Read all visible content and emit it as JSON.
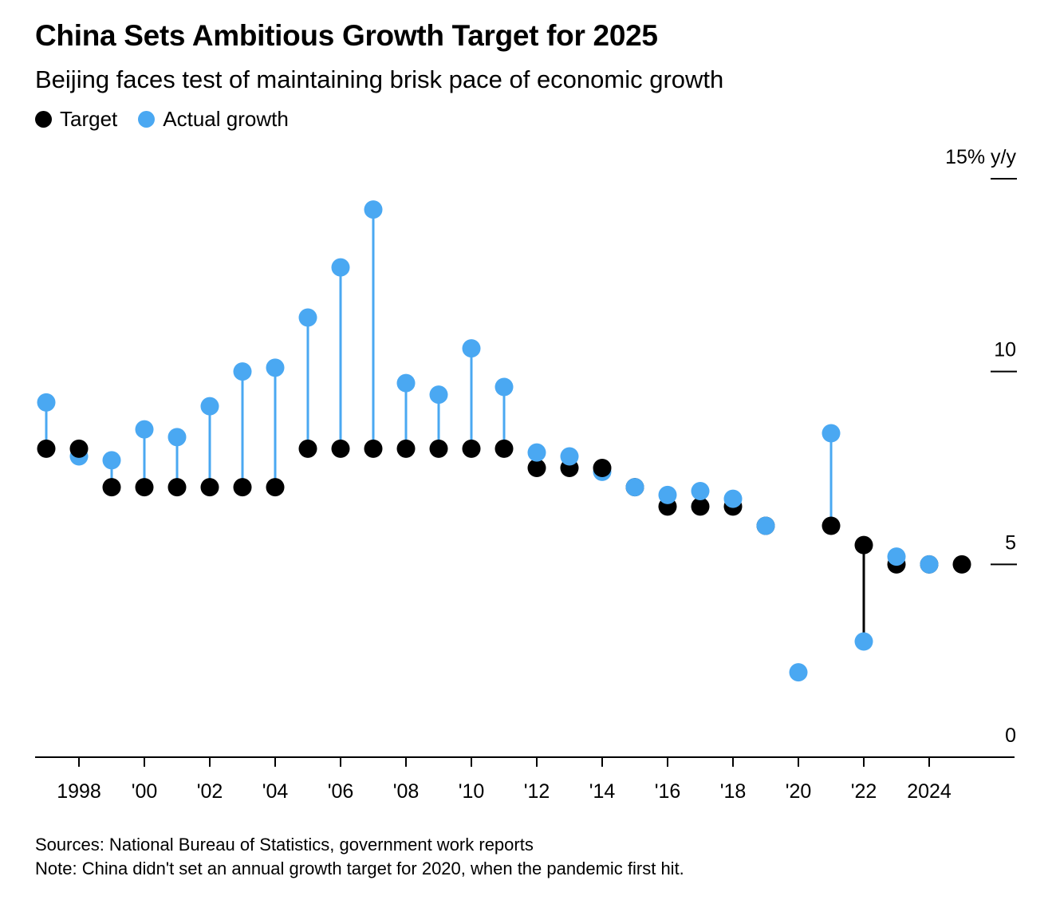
{
  "title": "China Sets Ambitious Growth Target for 2025",
  "subtitle": "Beijing faces test of maintaining brisk pace of economic growth",
  "legend": {
    "target_label": "Target",
    "actual_label": "Actual growth"
  },
  "colors": {
    "target": "#000000",
    "actual": "#4aa8f2",
    "axis": "#000000"
  },
  "footer": {
    "sources": "Sources: National Bureau of Statistics, government work reports",
    "note": "Note: China didn't set an annual growth target for 2020, when the pandemic first hit."
  },
  "chart_data": {
    "type": "scatter",
    "x": [
      1997,
      1998,
      1999,
      2000,
      2001,
      2002,
      2003,
      2004,
      2005,
      2006,
      2007,
      2008,
      2009,
      2010,
      2011,
      2012,
      2013,
      2014,
      2015,
      2016,
      2017,
      2018,
      2019,
      2020,
      2021,
      2022,
      2023,
      2024,
      2025
    ],
    "series": [
      {
        "name": "Target",
        "values": [
          8,
          8,
          7,
          7,
          7,
          7,
          7,
          7,
          8,
          8,
          8,
          8,
          8,
          8,
          8,
          7.5,
          7.5,
          7.5,
          7,
          6.5,
          6.5,
          6.5,
          6,
          null,
          6,
          5.5,
          5,
          5,
          5
        ]
      },
      {
        "name": "Actual growth",
        "values": [
          9.2,
          7.8,
          7.7,
          8.5,
          8.3,
          9.1,
          10.0,
          10.1,
          11.4,
          12.7,
          14.2,
          9.7,
          9.4,
          10.6,
          9.6,
          7.9,
          7.8,
          7.4,
          7.0,
          6.8,
          6.9,
          6.7,
          6.0,
          2.2,
          8.4,
          3.0,
          5.2,
          5.0,
          null
        ]
      }
    ],
    "x_tick_values": [
      1998,
      2000,
      2002,
      2004,
      2006,
      2008,
      2010,
      2012,
      2014,
      2016,
      2018,
      2020,
      2022,
      2024
    ],
    "x_tick_labels": [
      "1998",
      "'00",
      "'02",
      "'04",
      "'06",
      "'08",
      "'10",
      "'12",
      "'14",
      "'16",
      "'18",
      "'20",
      "'22",
      "2024"
    ],
    "y_tick_values": [
      0,
      5,
      10,
      15
    ],
    "y_tick_labels": [
      "0",
      "5",
      "10",
      "15% y/y"
    ],
    "ylim": [
      0,
      15
    ],
    "y_axis_side": "right",
    "grid": false
  }
}
